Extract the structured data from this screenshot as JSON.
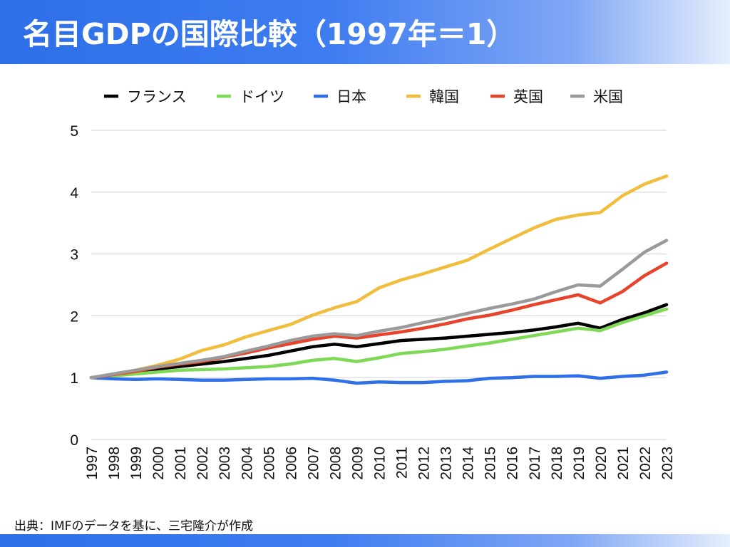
{
  "header": {
    "title": "名目GDPの国際比較（1997年＝1）"
  },
  "source": "出典：IMFのデータを基に、三宅隆介が作成",
  "colors": {
    "header_start": "#2d6fe8",
    "header_end": "#e6eefc",
    "grid": "#d9d9d9"
  },
  "chart_data": {
    "type": "line",
    "title": "名目GDPの国際比較（1997年＝1）",
    "xlabel": "",
    "ylabel": "",
    "ylim": [
      0,
      5
    ],
    "yticks": [
      0,
      1,
      2,
      3,
      4,
      5
    ],
    "grid": true,
    "legend_position": "top",
    "categories": [
      "1997",
      "1998",
      "1999",
      "2000",
      "2001",
      "2002",
      "2003",
      "2004",
      "2005",
      "2006",
      "2007",
      "2008",
      "2009",
      "2010",
      "2011",
      "2012",
      "2013",
      "2014",
      "2015",
      "2016",
      "2017",
      "2018",
      "2019",
      "2020",
      "2021",
      "2022",
      "2023"
    ],
    "series": [
      {
        "name": "フランス",
        "color": "#000000",
        "values": [
          1.0,
          1.04,
          1.08,
          1.14,
          1.18,
          1.22,
          1.26,
          1.31,
          1.36,
          1.43,
          1.5,
          1.54,
          1.5,
          1.55,
          1.6,
          1.62,
          1.64,
          1.67,
          1.7,
          1.73,
          1.77,
          1.82,
          1.88,
          1.8,
          1.94,
          2.05,
          2.18
        ]
      },
      {
        "name": "ドイツ",
        "color": "#7ed957",
        "values": [
          1.0,
          1.03,
          1.06,
          1.09,
          1.12,
          1.13,
          1.14,
          1.16,
          1.18,
          1.22,
          1.28,
          1.31,
          1.26,
          1.32,
          1.39,
          1.42,
          1.46,
          1.51,
          1.56,
          1.62,
          1.68,
          1.74,
          1.8,
          1.76,
          1.89,
          2.0,
          2.11
        ]
      },
      {
        "name": "日本",
        "color": "#2f6fe8",
        "values": [
          1.0,
          0.98,
          0.97,
          0.98,
          0.97,
          0.96,
          0.96,
          0.97,
          0.98,
          0.98,
          0.99,
          0.96,
          0.91,
          0.93,
          0.92,
          0.92,
          0.94,
          0.95,
          0.99,
          1.0,
          1.02,
          1.02,
          1.03,
          0.99,
          1.02,
          1.04,
          1.09
        ]
      },
      {
        "name": "韓国",
        "color": "#f0bd3d",
        "values": [
          1.0,
          1.05,
          1.12,
          1.2,
          1.3,
          1.44,
          1.53,
          1.66,
          1.76,
          1.86,
          2.01,
          2.13,
          2.23,
          2.45,
          2.58,
          2.68,
          2.79,
          2.9,
          3.08,
          3.25,
          3.42,
          3.56,
          3.63,
          3.67,
          3.94,
          4.13,
          4.26
        ]
      },
      {
        "name": "英国",
        "color": "#e8432b",
        "values": [
          1.0,
          1.05,
          1.1,
          1.17,
          1.22,
          1.26,
          1.33,
          1.4,
          1.48,
          1.55,
          1.62,
          1.67,
          1.64,
          1.69,
          1.74,
          1.8,
          1.87,
          1.95,
          2.01,
          2.09,
          2.18,
          2.26,
          2.34,
          2.21,
          2.39,
          2.65,
          2.85
        ]
      },
      {
        "name": "米国",
        "color": "#9a9a9a",
        "values": [
          1.0,
          1.06,
          1.12,
          1.18,
          1.23,
          1.28,
          1.34,
          1.43,
          1.51,
          1.6,
          1.67,
          1.71,
          1.68,
          1.75,
          1.81,
          1.89,
          1.96,
          2.04,
          2.12,
          2.19,
          2.27,
          2.39,
          2.5,
          2.48,
          2.75,
          3.03,
          3.22
        ]
      }
    ]
  }
}
